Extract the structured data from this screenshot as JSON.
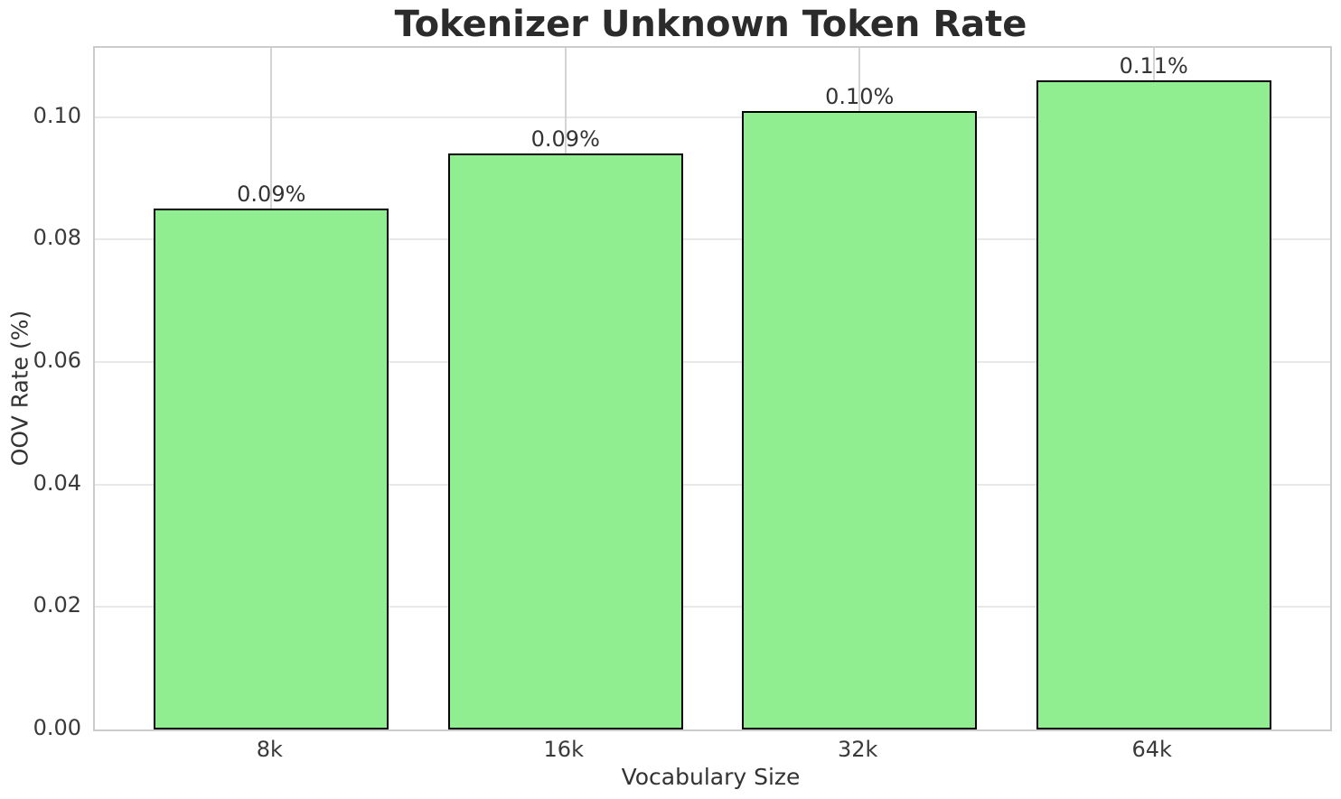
{
  "chart_data": {
    "type": "bar",
    "title": "Tokenizer Unknown Token Rate",
    "xlabel": "Vocabulary Size",
    "ylabel": "OOV Rate (%)",
    "categories": [
      "8k",
      "16k",
      "32k",
      "64k"
    ],
    "values": [
      0.085,
      0.094,
      0.101,
      0.106
    ],
    "bar_labels": [
      "0.09%",
      "0.09%",
      "0.10%",
      "0.11%"
    ],
    "ytick_labels": [
      "0.00",
      "0.02",
      "0.04",
      "0.06",
      "0.08",
      "0.10"
    ],
    "ytick_values": [
      0.0,
      0.02,
      0.04,
      0.06,
      0.08,
      0.1
    ],
    "ylim": [
      0,
      0.1113
    ],
    "xlim": [
      -0.6,
      3.6
    ],
    "bar_width_fraction": 0.8,
    "grid": true,
    "legend_position": "none",
    "colors": {
      "bar_fill": "#90EE90",
      "bar_edge": "#000000",
      "grid_horizontal": "#e8e8e8",
      "grid_vertical": "#d4d4d4",
      "spine": "#cccccc",
      "tick_text": "#3a3a3a",
      "title_text": "#2b2b2b",
      "background": "#ffffff"
    }
  }
}
